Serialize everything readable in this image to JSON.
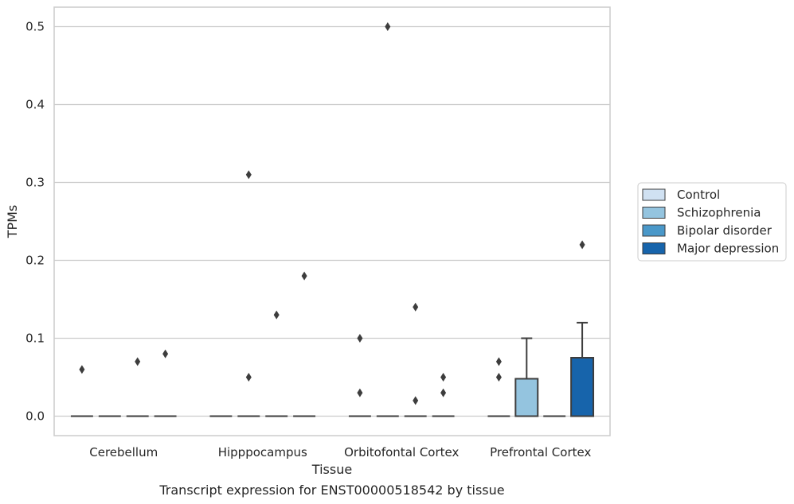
{
  "caption": "Transcript expression for ENST00000518542 by tissue",
  "chart_data": {
    "type": "box",
    "xlabel": "Tissue",
    "ylabel": "TPMs",
    "ylim": [
      -0.025,
      0.525
    ],
    "yticks": [
      "0.0",
      "0.1",
      "0.2",
      "0.3",
      "0.4",
      "0.5"
    ],
    "grid": true,
    "legend_position": "right",
    "categories": [
      "Cerebellum",
      "Hipppocampus",
      "Orbitofontal Cortex",
      "Prefrontal Cortex"
    ],
    "series": [
      {
        "name": "Control",
        "color": "#d0e1f2",
        "boxes": [
          {
            "q1": 0,
            "median": 0,
            "q3": 0,
            "whislo": 0,
            "whishi": 0,
            "fliers": [
              0.06
            ]
          },
          {
            "q1": 0,
            "median": 0,
            "q3": 0,
            "whislo": 0,
            "whishi": 0,
            "fliers": []
          },
          {
            "q1": 0,
            "median": 0,
            "q3": 0,
            "whislo": 0,
            "whishi": 0,
            "fliers": [
              0.1,
              0.03
            ]
          },
          {
            "q1": 0,
            "median": 0,
            "q3": 0,
            "whislo": 0,
            "whishi": 0,
            "fliers": [
              0.07,
              0.05
            ]
          }
        ]
      },
      {
        "name": "Schizophrenia",
        "color": "#94c4df",
        "boxes": [
          {
            "q1": 0,
            "median": 0,
            "q3": 0,
            "whislo": 0,
            "whishi": 0,
            "fliers": []
          },
          {
            "q1": 0,
            "median": 0,
            "q3": 0,
            "whislo": 0,
            "whishi": 0,
            "fliers": [
              0.31,
              0.05
            ]
          },
          {
            "q1": 0,
            "median": 0,
            "q3": 0,
            "whislo": 0,
            "whishi": 0,
            "fliers": [
              0.5
            ]
          },
          {
            "q1": 0,
            "median": 0,
            "q3": 0.048,
            "whislo": 0,
            "whishi": 0.1,
            "fliers": []
          }
        ]
      },
      {
        "name": "Bipolar disorder",
        "color": "#4a98c9",
        "boxes": [
          {
            "q1": 0,
            "median": 0,
            "q3": 0,
            "whislo": 0,
            "whishi": 0,
            "fliers": [
              0.07
            ]
          },
          {
            "q1": 0,
            "median": 0,
            "q3": 0,
            "whislo": 0,
            "whishi": 0,
            "fliers": [
              0.13
            ]
          },
          {
            "q1": 0,
            "median": 0,
            "q3": 0,
            "whislo": 0,
            "whishi": 0,
            "fliers": [
              0.14,
              0.02
            ]
          },
          {
            "q1": 0,
            "median": 0,
            "q3": 0,
            "whislo": 0,
            "whishi": 0,
            "fliers": []
          }
        ]
      },
      {
        "name": "Major depression",
        "color": "#1764ab",
        "boxes": [
          {
            "q1": 0,
            "median": 0,
            "q3": 0,
            "whislo": 0,
            "whishi": 0,
            "fliers": [
              0.08
            ]
          },
          {
            "q1": 0,
            "median": 0,
            "q3": 0,
            "whislo": 0,
            "whishi": 0,
            "fliers": [
              0.18
            ]
          },
          {
            "q1": 0,
            "median": 0,
            "q3": 0,
            "whislo": 0,
            "whishi": 0,
            "fliers": [
              0.05,
              0.03
            ]
          },
          {
            "q1": 0,
            "median": 0,
            "q3": 0.075,
            "whislo": 0,
            "whishi": 0.12,
            "fliers": [
              0.22
            ]
          }
        ]
      }
    ]
  }
}
